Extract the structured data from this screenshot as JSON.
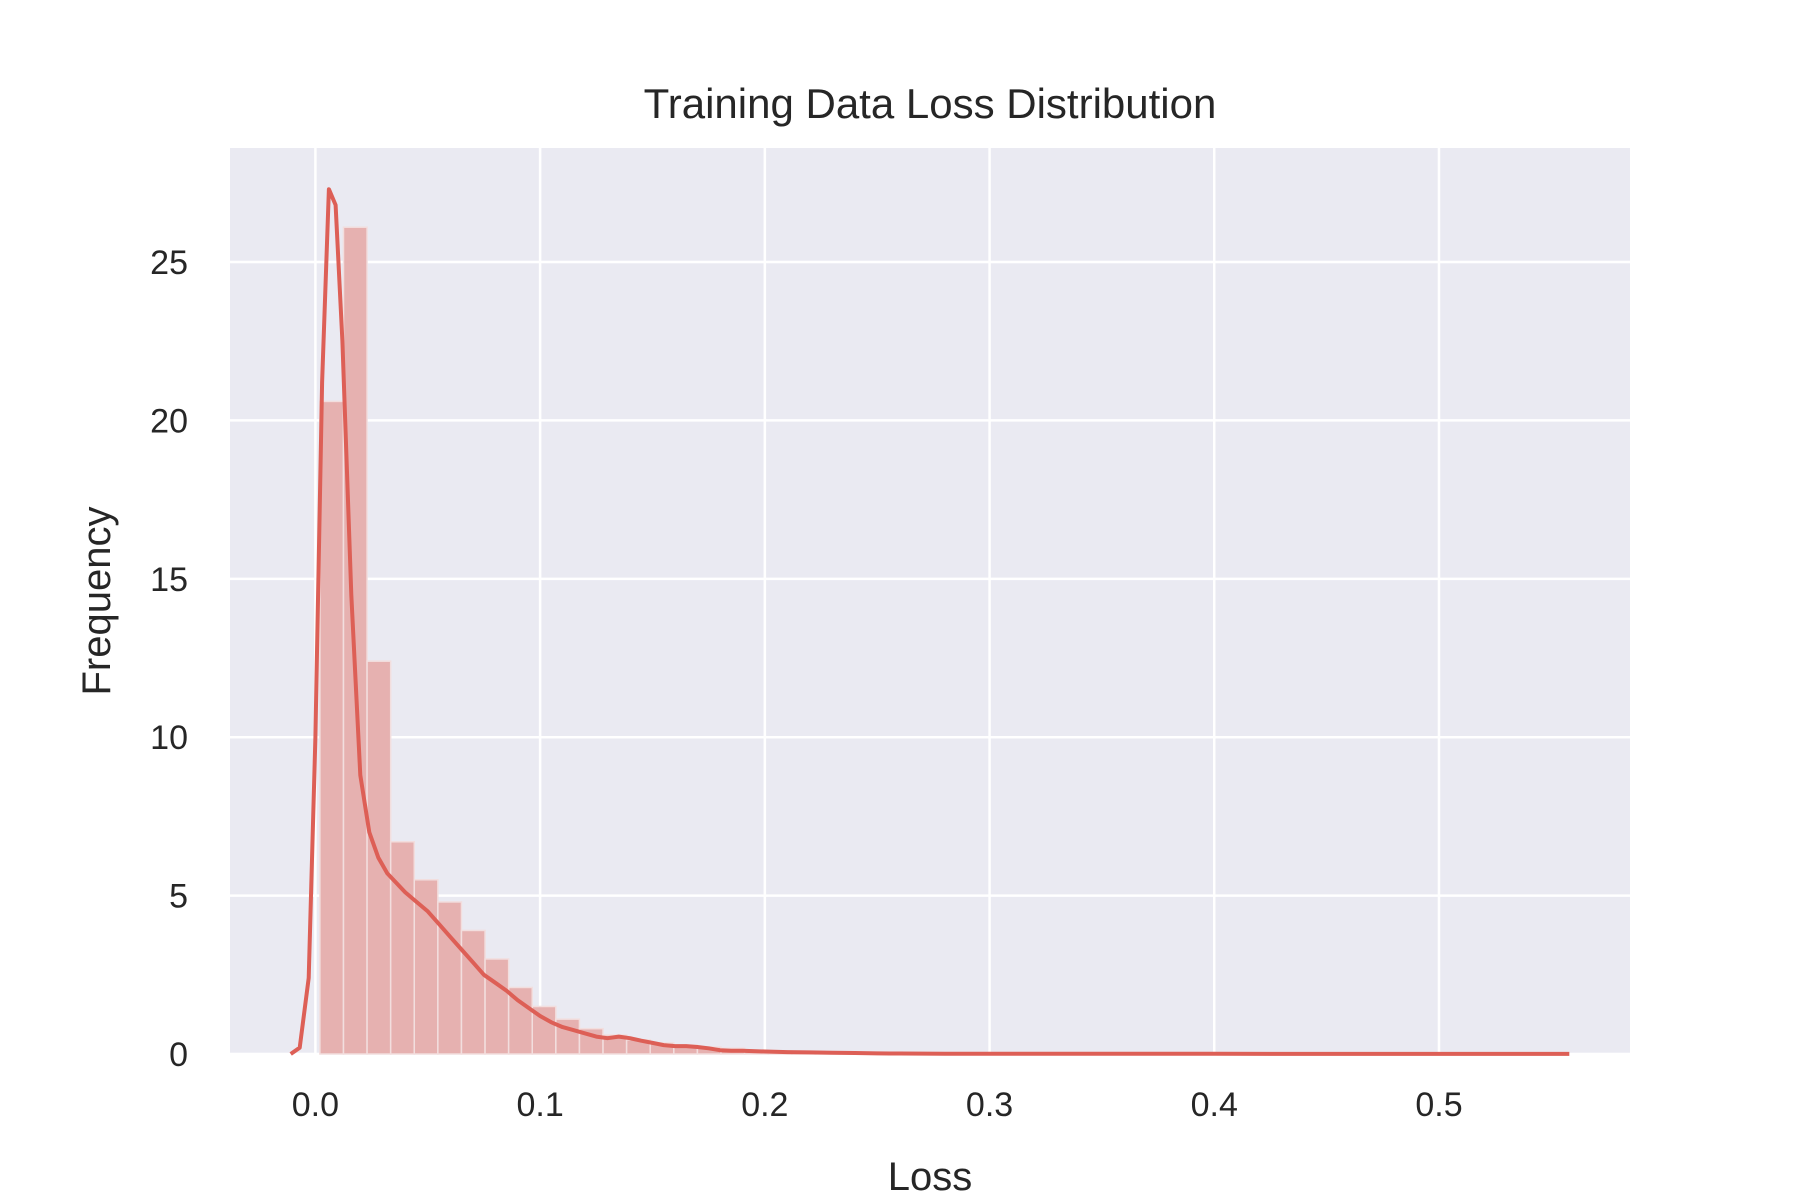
{
  "chart_data": {
    "type": "bar",
    "title": "Training Data Loss Distribution",
    "xlabel": "Loss",
    "ylabel": "Frequency",
    "xlim": [
      -0.038,
      0.585
    ],
    "ylim": [
      0,
      28.6
    ],
    "grid": true,
    "x_ticks": [
      0.0,
      0.1,
      0.2,
      0.3,
      0.4,
      0.5
    ],
    "x_tick_labels": [
      "0.0",
      "0.1",
      "0.2",
      "0.3",
      "0.4",
      "0.5"
    ],
    "y_ticks": [
      0,
      5,
      10,
      15,
      20,
      25
    ],
    "y_tick_labels": [
      "0",
      "5",
      "10",
      "15",
      "20",
      "25"
    ],
    "histogram": {
      "bin_width": 0.0105,
      "bin_starts": [
        0.002,
        0.0125,
        0.023,
        0.0335,
        0.044,
        0.0545,
        0.065,
        0.0755,
        0.086,
        0.0965,
        0.107,
        0.1175,
        0.128,
        0.1385,
        0.149,
        0.1595,
        0.17,
        0.1805,
        0.191,
        0.2015,
        0.212,
        0.2225,
        0.233,
        0.2435,
        0.254
      ],
      "values": [
        20.6,
        26.1,
        12.4,
        6.7,
        5.5,
        4.8,
        3.9,
        3.0,
        2.1,
        1.5,
        1.1,
        0.8,
        0.6,
        0.45,
        0.35,
        0.28,
        0.22,
        0.18,
        0.1,
        0.08,
        0.06,
        0.04,
        0.03,
        0.02,
        0.01
      ],
      "color": "#e6b1b0"
    },
    "kde": {
      "color": "#dd5f56",
      "x": [
        -0.011,
        -0.007,
        -0.003,
        0.0,
        0.003,
        0.006,
        0.009,
        0.012,
        0.016,
        0.02,
        0.024,
        0.028,
        0.032,
        0.036,
        0.04,
        0.045,
        0.05,
        0.055,
        0.06,
        0.065,
        0.07,
        0.075,
        0.08,
        0.085,
        0.09,
        0.095,
        0.1,
        0.105,
        0.11,
        0.115,
        0.12,
        0.125,
        0.13,
        0.135,
        0.14,
        0.145,
        0.15,
        0.155,
        0.16,
        0.165,
        0.17,
        0.175,
        0.18,
        0.185,
        0.19,
        0.2,
        0.21,
        0.22,
        0.23,
        0.24,
        0.25,
        0.26,
        0.28,
        0.3,
        0.32,
        0.35,
        0.4,
        0.45,
        0.5,
        0.558
      ],
      "y": [
        0.0,
        0.2,
        2.4,
        10.0,
        21.2,
        27.3,
        26.8,
        22.5,
        14.5,
        8.8,
        7.0,
        6.2,
        5.7,
        5.4,
        5.1,
        4.8,
        4.5,
        4.1,
        3.7,
        3.3,
        2.9,
        2.5,
        2.25,
        2.0,
        1.7,
        1.45,
        1.2,
        1.0,
        0.85,
        0.75,
        0.65,
        0.55,
        0.5,
        0.55,
        0.5,
        0.42,
        0.35,
        0.28,
        0.25,
        0.25,
        0.22,
        0.18,
        0.12,
        0.1,
        0.1,
        0.08,
        0.06,
        0.05,
        0.04,
        0.03,
        0.02,
        0.015,
        0.01,
        0.01,
        0.008,
        0.006,
        0.005,
        0.004,
        0.003,
        0.002
      ]
    },
    "colors": {
      "plot_background": "#eaeaf2",
      "grid": "#ffffff"
    }
  }
}
